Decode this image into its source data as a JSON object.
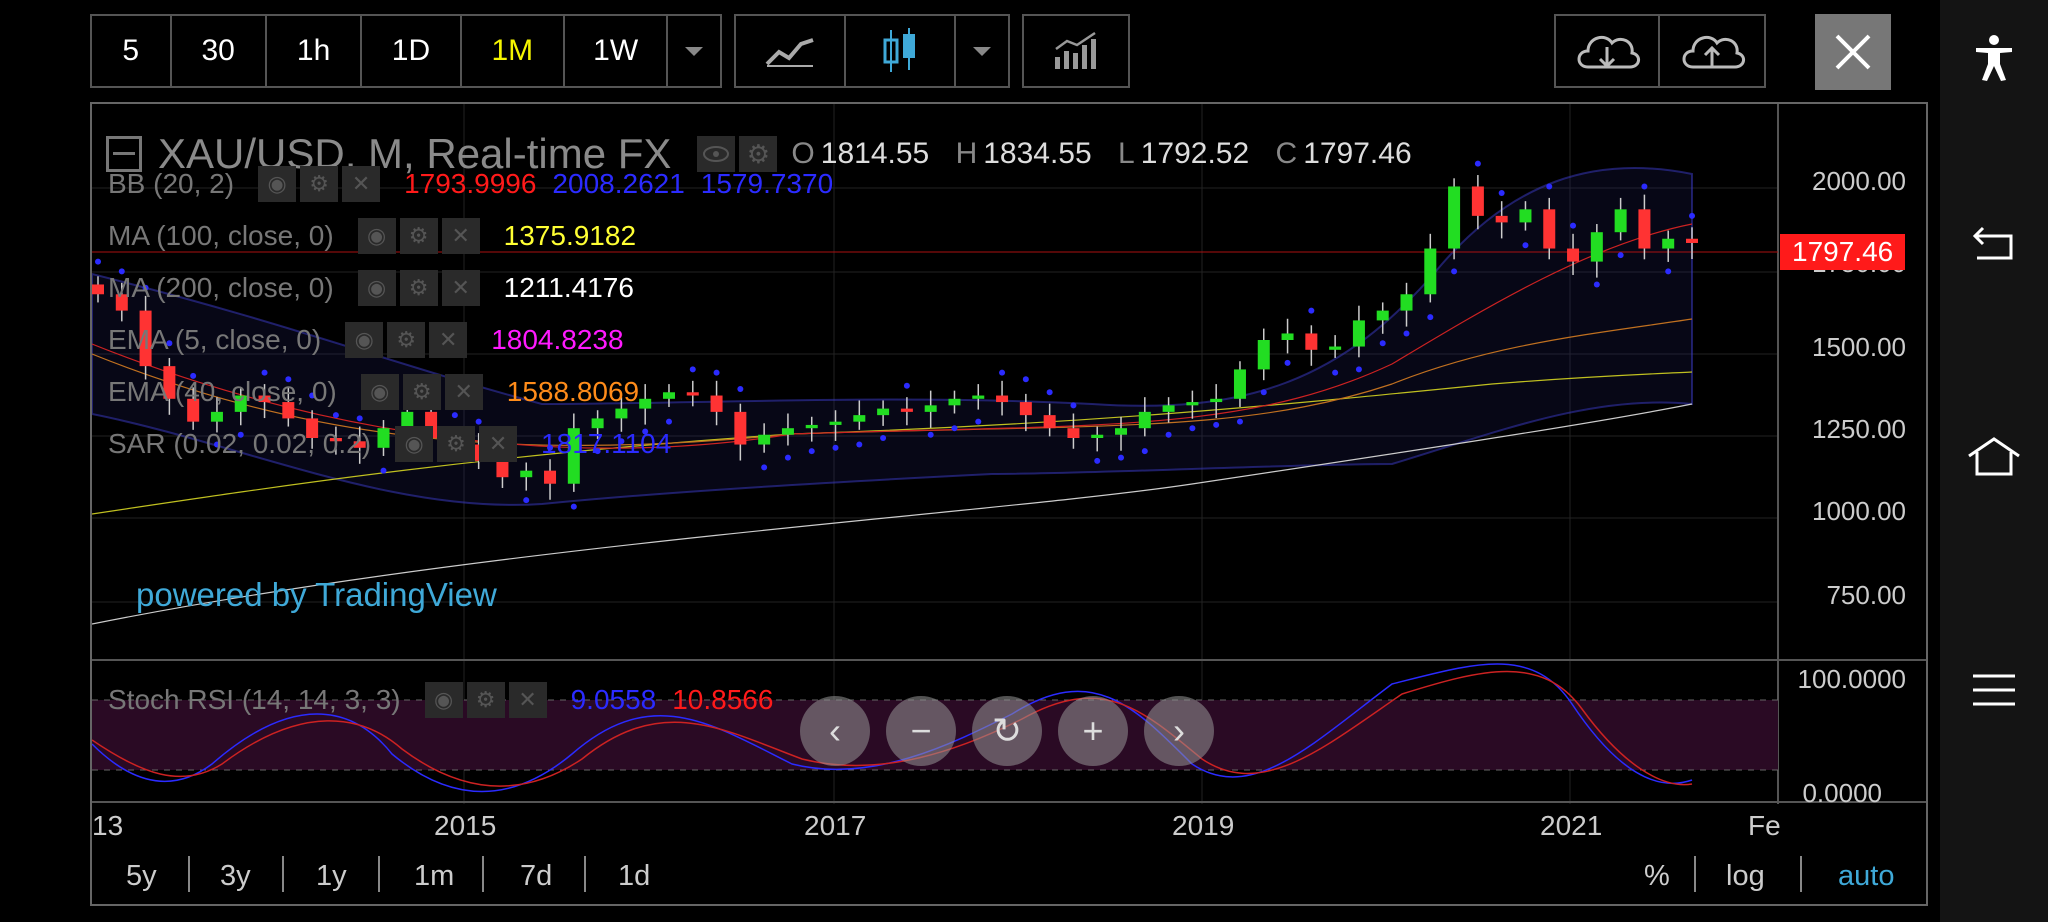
{
  "toolbar": {
    "intervals": [
      "5",
      "30",
      "1h",
      "1D",
      "1M",
      "1W"
    ],
    "active_interval": "1M"
  },
  "chart": {
    "title": "XAU/USD, M, Real-time FX",
    "ohlc": {
      "o_label": "O",
      "o": "1814.55",
      "h_label": "H",
      "h": "1834.55",
      "l_label": "L",
      "l": "1792.52",
      "c_label": "C",
      "c": "1797.46"
    },
    "last_price": "1797.46",
    "watermark": "powered by TradingView",
    "y_axis": [
      "2000.00",
      "1750.00",
      "1500.00",
      "1250.00",
      "1000.00",
      "750.00"
    ],
    "osc_axis": [
      "100.0000",
      "0.0000"
    ],
    "x_axis": [
      "13",
      "2015",
      "2017",
      "2019",
      "2021",
      "Fe"
    ]
  },
  "indicators": [
    {
      "name": "BB (20, 2)",
      "values": [
        "1793.9996",
        "2008.2621",
        "1579.7370"
      ],
      "colors": [
        "#ff1a1a",
        "#2b2bff",
        "#2b2bff"
      ]
    },
    {
      "name": "MA (100, close, 0)",
      "values": [
        "1375.9182"
      ],
      "colors": [
        "#ffff33"
      ]
    },
    {
      "name": "MA (200, close, 0)",
      "values": [
        "1211.4176"
      ],
      "colors": [
        "#ffffff"
      ]
    },
    {
      "name": "EMA (5, close, 0)",
      "values": [
        "1804.8238"
      ],
      "colors": [
        "#ff1aff"
      ]
    },
    {
      "name": "EMA (40, close, 0)",
      "values": [
        "1588.8069"
      ],
      "colors": [
        "#ff8c1a"
      ]
    },
    {
      "name": "SAR (0.02, 0.02, 0.2)",
      "values": [
        "1817.1104"
      ],
      "colors": [
        "#2b2bff"
      ]
    }
  ],
  "oscillator": {
    "name": "Stoch RSI (14, 14, 3, 3)",
    "values": [
      "9.0558",
      "10.8566"
    ],
    "colors": [
      "#2b2bff",
      "#ff1a1a"
    ]
  },
  "ranges": [
    "5y",
    "3y",
    "1y",
    "1m",
    "7d",
    "1d"
  ],
  "scale_options": [
    "%",
    "log",
    "auto"
  ],
  "active_scale": "auto",
  "colors": {
    "up": "#22dd22",
    "down": "#ff3333",
    "accent": "#3fa9d8",
    "active": "#f5f500"
  },
  "chart_data": {
    "type": "candlestick",
    "title": "XAU/USD, M, Real-time FX",
    "ylim": [
      600,
      2100
    ],
    "x_ticks": [
      "2015",
      "2017",
      "2019",
      "2021"
    ],
    "series": [
      {
        "name": "XAU/USD",
        "values": [
          1640,
          1590,
          1420,
          1320,
          1250,
          1280,
          1330,
          1310,
          1260,
          1200,
          1190,
          1170,
          1230,
          1280,
          1200,
          1180,
          1130,
          1080,
          1100,
          1060,
          1230,
          1260,
          1290,
          1320,
          1340,
          1330,
          1280,
          1180,
          1210,
          1230,
          1240,
          1250,
          1270,
          1290,
          1280,
          1300,
          1320,
          1330,
          1310,
          1270,
          1230,
          1200,
          1210,
          1230,
          1280,
          1300,
          1310,
          1320,
          1410,
          1500,
          1520,
          1470,
          1480,
          1560,
          1590,
          1640,
          1780,
          1970,
          1880,
          1860,
          1900,
          1780,
          1740,
          1830,
          1900,
          1780,
          1810,
          1797
        ]
      },
      {
        "name": "MA (100, close, 0)",
        "values": [
          1375.9
        ]
      },
      {
        "name": "MA (200, close, 0)",
        "values": [
          1211.4
        ]
      }
    ]
  }
}
